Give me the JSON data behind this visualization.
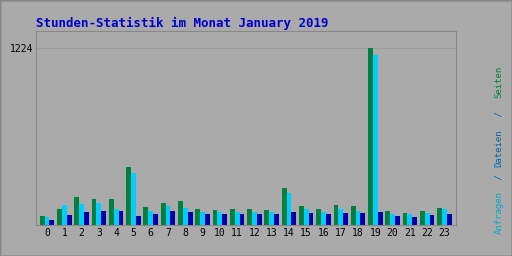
{
  "title": "Stunden-Statistik im Monat January 2019",
  "title_color": "#0000cc",
  "background_color": "#aaaaaa",
  "plot_bg_color": "#aaaaaa",
  "hours": [
    0,
    1,
    2,
    3,
    4,
    5,
    6,
    7,
    8,
    9,
    10,
    11,
    12,
    13,
    14,
    15,
    16,
    17,
    18,
    19,
    20,
    21,
    22,
    23
  ],
  "seiten": [
    65,
    110,
    195,
    185,
    180,
    400,
    125,
    155,
    170,
    110,
    105,
    115,
    110,
    105,
    255,
    135,
    115,
    140,
    135,
    1224,
    100,
    85,
    100,
    120
  ],
  "dateien": [
    55,
    140,
    145,
    155,
    110,
    360,
    100,
    130,
    120,
    95,
    90,
    90,
    90,
    95,
    225,
    115,
    95,
    115,
    100,
    1175,
    80,
    75,
    85,
    110
  ],
  "anfragen": [
    38,
    70,
    90,
    100,
    100,
    65,
    80,
    100,
    90,
    75,
    75,
    75,
    75,
    75,
    90,
    85,
    75,
    85,
    85,
    95,
    65,
    60,
    70,
    80
  ],
  "color_seiten": "#008040",
  "color_dateien": "#00ccff",
  "color_anfragen": "#0000aa",
  "ylabel_seiten": "Seiten",
  "ylabel_sep1": " / ",
  "ylabel_dateien": "Dateien",
  "ylabel_sep2": " / ",
  "ylabel_anfragen": "Anfragen",
  "ylabel_color_seiten": "#008040",
  "ylabel_color_sep": "#0066aa",
  "ylabel_color_dateien": "#0066aa",
  "ylabel_color_anfragen": "#00aacc",
  "ymax": 1224,
  "ytick": 1224,
  "bar_width": 0.28,
  "border_color": "#888888",
  "grid_color": "#999999"
}
